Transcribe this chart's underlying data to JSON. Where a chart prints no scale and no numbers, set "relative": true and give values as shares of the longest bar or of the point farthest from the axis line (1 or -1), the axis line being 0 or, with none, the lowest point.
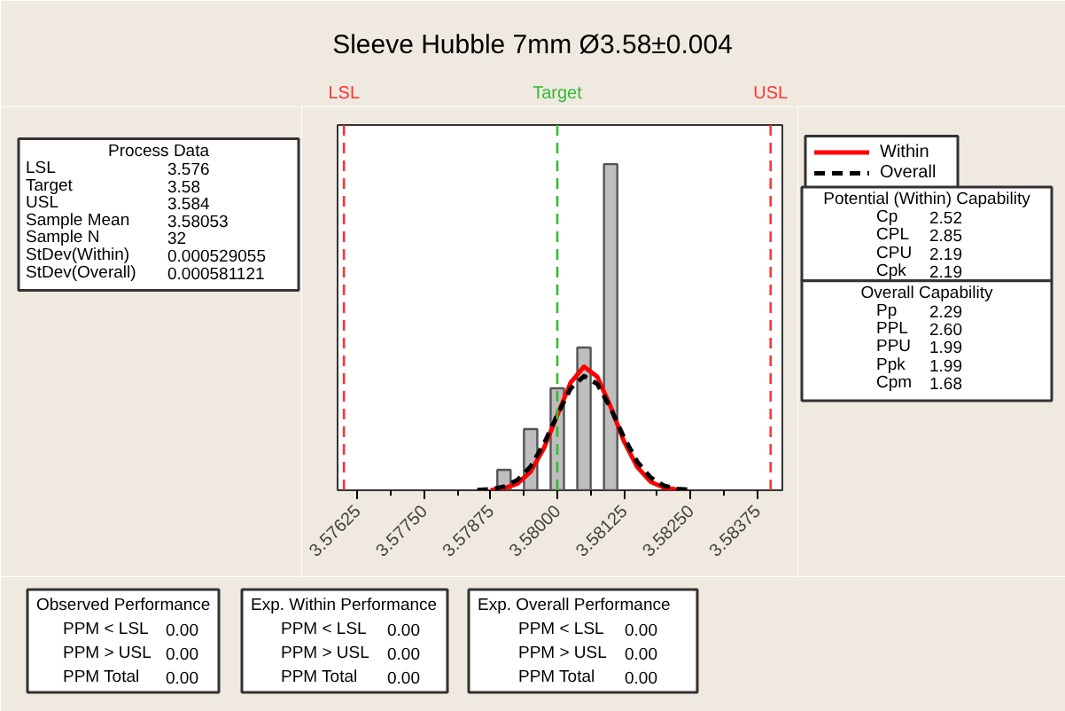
{
  "chart_data": {
    "type": "histogram",
    "title": "Sleeve Hubble 7mm Ø3.58±0.004",
    "relative": true,
    "bins": [
      3.57875,
      3.57925,
      3.57975,
      3.58025,
      3.58075,
      3.58125
    ],
    "values": [
      0.0625,
      0.1875,
      0.3125,
      0.4375,
      1
    ],
    "color": "#bebebe",
    "series": [
      {
        "name": "Within",
        "type": "line",
        "color": "#ff0000",
        "line_style": "solid",
        "x": [
          3.57875,
          3.579,
          3.57925,
          3.5795,
          3.57975,
          3.58,
          3.58025,
          3.5805,
          3.58075,
          3.581,
          3.58125,
          3.5815,
          3.58175,
          3.582,
          3.58225
        ],
        "values": [
          0.001,
          0.006,
          0.02,
          0.057,
          0.129,
          0.23,
          0.33,
          0.379,
          0.348,
          0.256,
          0.15,
          0.071,
          0.026,
          0.008,
          0.002
        ]
      },
      {
        "name": "Overall",
        "type": "line",
        "color": "#000000",
        "line_style": "dashed",
        "x": [
          3.5785,
          3.57875,
          3.579,
          3.57925,
          3.5795,
          3.57975,
          3.58,
          3.58025,
          3.5805,
          3.58075,
          3.581,
          3.58125,
          3.5815,
          3.58175,
          3.582,
          3.58225,
          3.5825
        ],
        "values": [
          0.001,
          0.003,
          0.011,
          0.031,
          0.073,
          0.143,
          0.231,
          0.312,
          0.35,
          0.326,
          0.252,
          0.162,
          0.087,
          0.039,
          0.014,
          0.004,
          0.001
        ]
      }
    ],
    "xlim": [
      3.57588,
      3.58422
    ],
    "xticks": [
      {
        "value": 3.57625,
        "label": "3.57625"
      },
      {
        "value": 3.5775,
        "label": "3.57750"
      },
      {
        "value": 3.57875,
        "label": "3.57875"
      },
      {
        "value": 3.58,
        "label": "3.58000"
      },
      {
        "value": 3.58125,
        "label": "3.58125"
      },
      {
        "value": 3.5825,
        "label": "3.58250"
      },
      {
        "value": 3.58375,
        "label": "3.58375"
      }
    ],
    "ref_lines": [
      {
        "axis": "x",
        "value": 3.576,
        "label": "LSL",
        "color": "#ff3333",
        "line_style": "dashed"
      },
      {
        "axis": "x",
        "value": 3.58,
        "label": "Target",
        "color": "#33bb33",
        "line_style": "dashed"
      },
      {
        "axis": "x",
        "value": 3.584,
        "label": "USL",
        "color": "#ff3333",
        "line_style": "dashed"
      }
    ],
    "legend": "right",
    "grid": false,
    "annotations": [
      "Process Data\nLSL\t3.576\nTarget\t3.58\nUSL\t3.584\nSample Mean\t3.58053\nSample N\t32\nStDev(Within)\t0.000529055\nStDev(Overall)\t0.000581121",
      "Potential (Within) Capability\nCp\t2.52\nCPL\t2.85\nCPU\t2.19\nCpk\t2.19",
      "Overall Capability\nPp\t2.29\nPPL\t2.60\nPPU\t1.99\nPpk\t1.99\nCpm\t1.68",
      "Observed Performance\nPPM < LSL\t0.00\nPPM > USL\t0.00\nPPM Total\t0.00",
      "Exp. Within Performance\nPPM < LSL\t0.00\nPPM > USL\t0.00\nPPM Total\t0.00",
      "Exp. Overall Performance\nPPM < LSL\t0.00\nPPM > USL\t0.00\nPPM Total\t0.00"
    ]
  }
}
